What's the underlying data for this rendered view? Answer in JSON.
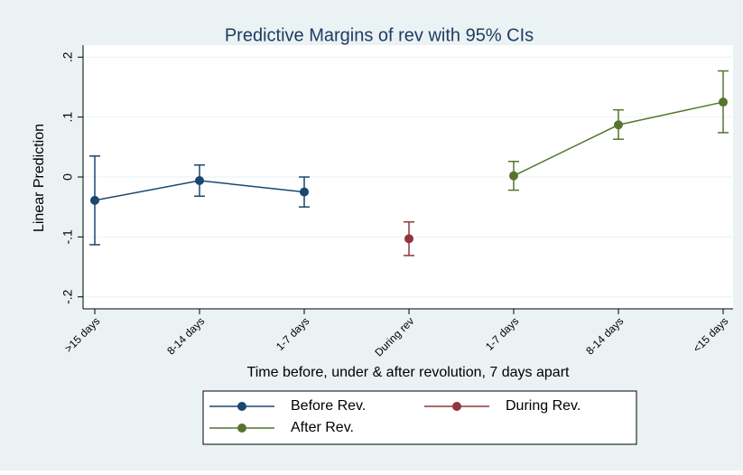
{
  "chart_data": {
    "type": "errorbar-line",
    "title": "Predictive Margins of rev with 95% CIs",
    "x_label": "Time before, under & after revolution, 7 days apart",
    "y_label": "Linear Prediction",
    "categories": [
      ">15 days",
      "8-14 days",
      "1-7 days",
      "During rev",
      "1-7 days",
      "8-14 days",
      "<15 days"
    ],
    "ylim": [
      -0.22,
      0.22
    ],
    "yticks": [
      {
        "value": -0.2,
        "label": "-.2"
      },
      {
        "value": -0.1,
        "label": "-.1"
      },
      0,
      {
        "value": 0.1,
        "label": ".1"
      },
      {
        "value": 0.2,
        "label": ".2"
      }
    ],
    "grid": true,
    "legend": "bottom",
    "series": [
      {
        "name": "Before Rev.",
        "color": "#1a476f",
        "values": [
          -0.039,
          -0.006,
          -0.025,
          null,
          null,
          null,
          null
        ],
        "lower": [
          -0.113,
          -0.032,
          -0.05,
          null,
          null,
          null,
          null
        ],
        "upper": [
          0.035,
          0.02,
          0.0,
          null,
          null,
          null,
          null
        ]
      },
      {
        "name": "During Rev.",
        "color": "#90353b",
        "values": [
          null,
          null,
          null,
          -0.103,
          null,
          null,
          null
        ],
        "lower": [
          null,
          null,
          null,
          -0.131,
          null,
          null,
          null
        ],
        "upper": [
          null,
          null,
          null,
          -0.075,
          null,
          null,
          null
        ]
      },
      {
        "name": "After Rev.",
        "color": "#55752f",
        "values": [
          null,
          null,
          null,
          null,
          0.002,
          0.087,
          0.125
        ],
        "lower": [
          null,
          null,
          null,
          null,
          -0.022,
          0.063,
          0.074
        ],
        "upper": [
          null,
          null,
          null,
          null,
          0.026,
          0.112,
          0.177
        ]
      }
    ]
  }
}
